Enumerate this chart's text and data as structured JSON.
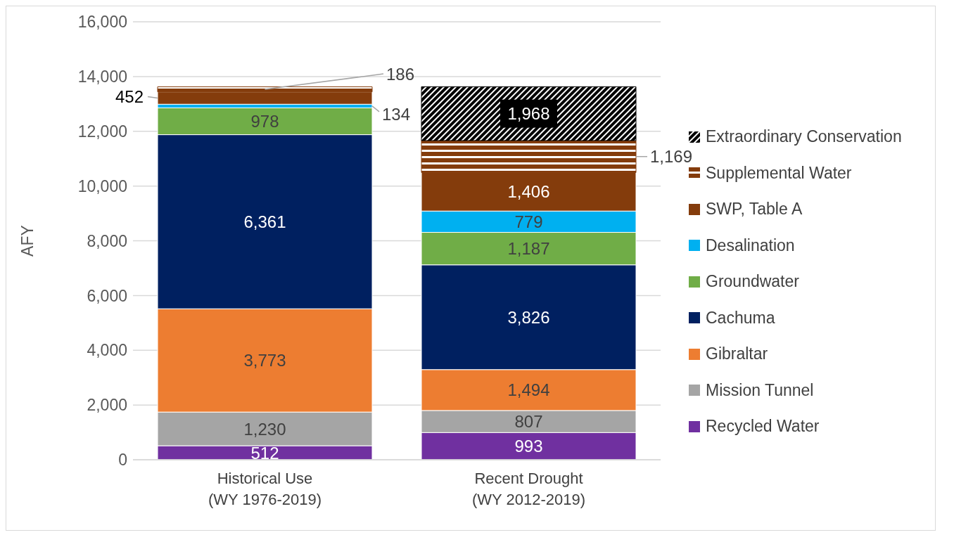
{
  "chart_data": {
    "type": "bar",
    "stacked": true,
    "ylabel": "AFY",
    "categories": [
      "Historical Use\n(WY 1976-2019)",
      "Recent Drought\n(WY 2012-2019)"
    ],
    "series": [
      {
        "name": "Recycled Water",
        "color": "#7030a0",
        "values": [
          512,
          993
        ],
        "value_labels": [
          "512",
          "993"
        ]
      },
      {
        "name": "Mission Tunnel",
        "color": "#a5a5a5",
        "values": [
          1230,
          807
        ],
        "value_labels": [
          "1,230",
          "807"
        ]
      },
      {
        "name": "Gibraltar",
        "color": "#ed7d31",
        "values": [
          3773,
          1494
        ],
        "value_labels": [
          "3,773",
          "1,494"
        ]
      },
      {
        "name": "Cachuma",
        "color": "#002060",
        "values": [
          6361,
          3826
        ],
        "value_labels": [
          "6,361",
          "3,826"
        ]
      },
      {
        "name": "Groundwater",
        "color": "#70ad47",
        "values": [
          978,
          1187
        ],
        "value_labels": [
          "978",
          "1,187"
        ]
      },
      {
        "name": "Desalination",
        "color": "#00b0f0",
        "values": [
          134,
          779
        ],
        "value_labels": [
          "134",
          "779"
        ]
      },
      {
        "name": "SWP, Table A",
        "color": "#843c0c",
        "values": [
          452,
          1406
        ],
        "value_labels": [
          "452",
          "1,406"
        ]
      },
      {
        "name": "Supplemental Water",
        "color": "#843c0c",
        "values": [
          186,
          1169
        ],
        "value_labels": [
          "186",
          "1,169"
        ]
      },
      {
        "name": "Extraordinary Conservation",
        "color": "#000000",
        "values": [
          null,
          1968
        ],
        "value_labels": [
          null,
          "1,968"
        ]
      }
    ],
    "ylim": [
      0,
      16000
    ],
    "yticks": [
      0,
      {
        "value": 2000,
        "label": "2,000"
      },
      {
        "value": 4000,
        "label": "4,000"
      },
      {
        "value": 6000,
        "label": "6,000"
      },
      {
        "value": 8000,
        "label": "8,000"
      },
      {
        "value": 10000,
        "label": "10,000"
      },
      {
        "value": 12000,
        "label": "12,000"
      },
      {
        "value": 14000,
        "label": "14,000"
      },
      {
        "value": 16000,
        "label": "16,000"
      }
    ],
    "grid": "y",
    "legend": "right",
    "data_labels": true
  }
}
